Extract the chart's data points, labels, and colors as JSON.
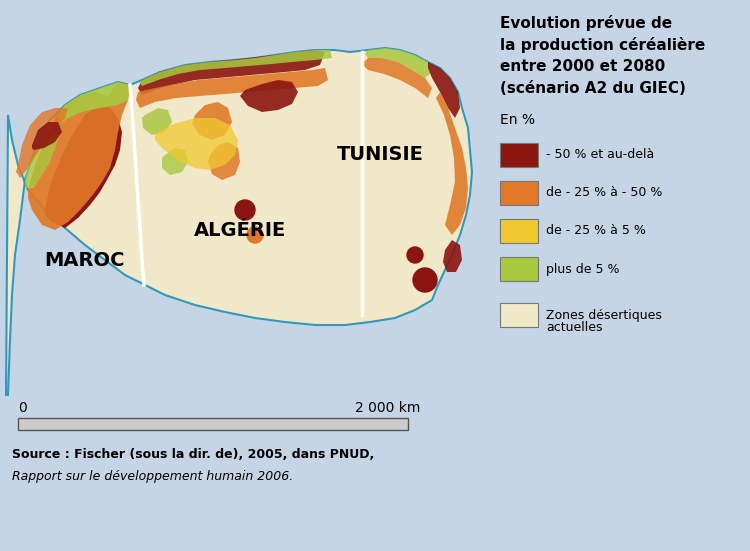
{
  "bg_color": "#c5d5e5",
  "title_lines": [
    "Evolution prévue de",
    "la production céréalière",
    "entre 2000 et 2080",
    "(scénario A2 du GIEC)"
  ],
  "en_pct_label": "En %",
  "legend_items": [
    {
      "color": "#8b1510",
      "label": "- 50 % et au-delà"
    },
    {
      "color": "#e07828",
      "label": "de - 25 % à - 50 %"
    },
    {
      "color": "#f0c830",
      "label": "de - 25 % à 5 %"
    },
    {
      "color": "#a8c840",
      "label": "plus de 5 %"
    }
  ],
  "desert_color": "#f0e8c8",
  "desert_label_line1": "Zones désertiques",
  "desert_label_line2": "actuelles",
  "scale_label_0": "0",
  "scale_label_2000": "2 000 km",
  "source_line1": "Source : Fischer (sous la dir. de), 2005, dans PNUD,",
  "source_line2": "Rapport sur le développement humain 2006."
}
